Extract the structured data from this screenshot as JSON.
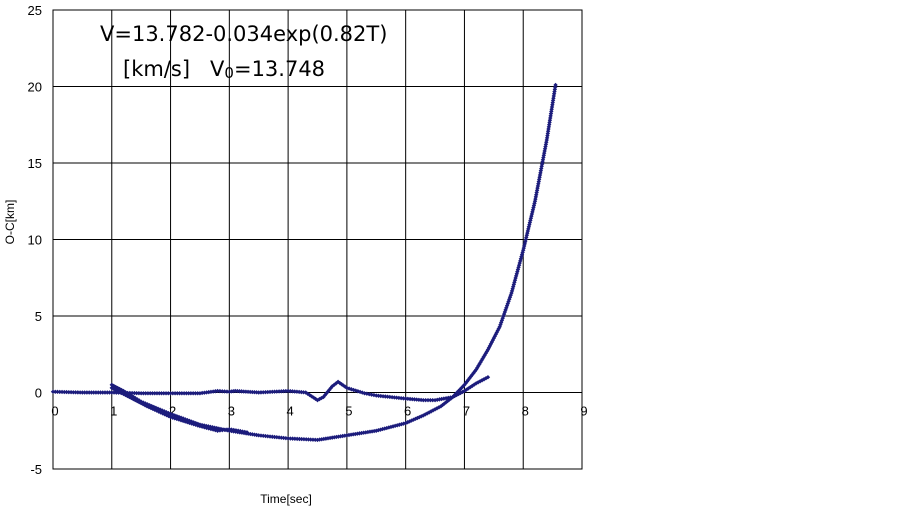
{
  "chart_data": {
    "type": "scatter",
    "title": "",
    "annotation": {
      "line1": "V=13.782-0.034exp(0.82T)",
      "line2_prefix": "[km/s]   V",
      "line2_sub": "0",
      "line2_suffix": "=13.748"
    },
    "xlabel": "Time[sec]",
    "ylabel": "O-C[km]",
    "xlim": [
      0,
      9
    ],
    "ylim": [
      -5,
      25
    ],
    "xticks": [
      "0",
      "1",
      "2",
      "3",
      "4",
      "5",
      "6",
      "7",
      "8",
      "9"
    ],
    "yticks": [
      "25",
      "20",
      "15",
      "10",
      "5",
      "0",
      "-5"
    ],
    "grid": true,
    "marker_color": "#1c1c7c",
    "series": [
      {
        "name": "",
        "x": [
          0.0,
          0.5,
          1.0,
          1.5,
          2.0,
          2.5,
          2.8,
          3.0,
          3.1,
          3.5,
          4.0,
          4.3,
          4.5,
          4.6,
          4.75,
          4.85,
          5.0,
          5.3,
          5.5,
          6.0,
          6.3,
          6.5,
          6.8,
          7.0,
          7.2,
          7.4
        ],
        "y": [
          0.05,
          0.0,
          0.0,
          -0.05,
          -0.05,
          -0.05,
          0.1,
          0.05,
          0.1,
          0.0,
          0.1,
          0.0,
          -0.5,
          -0.3,
          0.4,
          0.7,
          0.3,
          -0.05,
          -0.2,
          -0.4,
          -0.5,
          -0.5,
          -0.3,
          0.1,
          0.6,
          1.0
        ]
      },
      {
        "name": "",
        "x": [
          1.0,
          1.2,
          1.5,
          2.0,
          2.5,
          3.0,
          3.5,
          4.0,
          4.5,
          5.0,
          5.5,
          6.0,
          6.3,
          6.6,
          6.8,
          7.0,
          7.2,
          7.4,
          7.6,
          7.8,
          8.0,
          8.2,
          8.4,
          8.55
        ],
        "y": [
          0.5,
          0.1,
          -0.6,
          -1.4,
          -2.1,
          -2.5,
          -2.8,
          -3.0,
          -3.1,
          -2.8,
          -2.5,
          -2.0,
          -1.5,
          -0.9,
          -0.3,
          0.5,
          1.5,
          2.8,
          4.3,
          6.5,
          9.3,
          12.5,
          16.5,
          20.1
        ]
      },
      {
        "name": "",
        "x": [
          1.0,
          1.3,
          1.6,
          2.0,
          2.5,
          2.8,
          3.0,
          3.3
        ],
        "y": [
          0.3,
          -0.3,
          -0.9,
          -1.6,
          -2.2,
          -2.5,
          -2.4,
          -2.6
        ]
      }
    ]
  }
}
